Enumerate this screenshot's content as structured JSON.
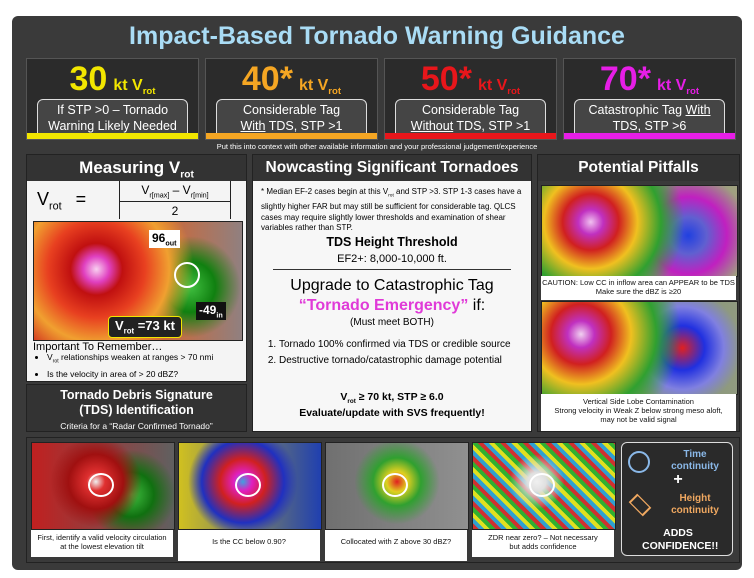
{
  "title": "Impact-Based Tornado Warning Guidance",
  "thresholds": [
    {
      "value": "30",
      "unit": "kt V",
      "sub": "rot",
      "color": "#f2e600",
      "lines": [
        [
          {
            "text": "If STP >0 – Tornado",
            "underline": false
          }
        ],
        [
          {
            "text": "Warning Likely Needed",
            "underline": false
          }
        ]
      ]
    },
    {
      "value": "40*",
      "unit": "kt V",
      "sub": "rot",
      "color": "#f5a623",
      "lines": [
        [
          {
            "text": "Considerable Tag",
            "underline": false
          }
        ],
        [
          {
            "text": "With",
            "underline": true
          },
          {
            "text": " TDS, STP >1",
            "underline": false
          }
        ]
      ]
    },
    {
      "value": "50*",
      "unit": "kt V",
      "sub": "rot",
      "color": "#e8161b",
      "lines": [
        [
          {
            "text": "Considerable Tag",
            "underline": false
          }
        ],
        [
          {
            "text": "Without",
            "underline": true
          },
          {
            "text": " TDS, STP >1",
            "underline": false
          }
        ]
      ]
    },
    {
      "value": "70*",
      "unit": "kt V",
      "sub": "rot",
      "color": "#e61ee6",
      "lines": [
        [
          {
            "text": "Catastrophic Tag ",
            "underline": false
          },
          {
            "text": "With",
            "underline": true
          }
        ],
        [
          {
            "text": "TDS, STP >6",
            "underline": false
          }
        ]
      ]
    }
  ],
  "context_note": "Put this into context with other available information and your professional judgement/experience",
  "measuring": {
    "heading": "Measuring V",
    "heading_sub": "rot",
    "formula": {
      "v": "V",
      "v_sub": "rot",
      "eq": "=",
      "num_a": "V",
      "num_a_sub": "r[max]",
      "minus": " – ",
      "num_b": "V",
      "num_b_sub": "r[min]",
      "den": "2"
    },
    "image_labels": {
      "out": "96",
      "out_sub": "out",
      "in": "-49",
      "in_sub": "in",
      "vrot": "V",
      "vrot_sub": "rot",
      "vrot_val": " =73 kt"
    },
    "remember": "Important To Remember…",
    "bullets": [
      {
        "pre": "V",
        "sub": "rot",
        "post": " relationships weaken at ranges > 70 nmi"
      },
      {
        "pre": "Is the velocity in area of > 20 dBZ?",
        "sub": "",
        "post": ""
      }
    ]
  },
  "tds": {
    "heading": "Tornado Debris Signature (TDS) Identification",
    "criteria": "Criteria for a “Radar Confirmed Tornado”"
  },
  "nowcasting": {
    "heading": "Nowcasting Significant Tornadoes",
    "note_pre": "* Median EF-2 cases begin at this V",
    "note_sub": "rot",
    "note_post": " and STP >3. STP 1-3 cases have a slightly higher FAR but may still be sufficient for considerable tag. QLCS cases may require slightly lower thresholds and examination of shear variables rather than STP.",
    "tds_height_heading": "TDS Height Threshold",
    "tds_height": "EF2+: 8,000-10,000 ft.",
    "upgrade": "Upgrade to Catastrophic Tag",
    "emergency": "“Tornado Emergency”",
    "if": " if:",
    "must": "(Must meet BOTH)",
    "items": [
      "Tornado 100% confirmed via TDS or credible source",
      "Destructive tornado/catastrophic damage potential"
    ],
    "criteria_pre": "V",
    "criteria_sub": "rot",
    "criteria_post": " ≥ 70 kt, STP ≥ 6.0",
    "evaluate": "Evaluate/update with SVS frequently!"
  },
  "pitfalls": {
    "heading": "Potential Pitfalls",
    "captions": [
      [
        "CAUTION: Low CC in inflow area can APPEAR to be TDS",
        "Make sure the dBZ is ≥20"
      ],
      [
        "Vertical Side Lobe Contamination",
        "Strong velocity in Weak Z below strong meso aloft,",
        "may not be valid signal"
      ]
    ]
  },
  "steps": [
    [
      "First, identify a valid velocity circulation",
      "at the lowest elevation tilt"
    ],
    [
      "Is the CC below 0.90?"
    ],
    [
      "Collocated with Z above 30 dBZ?"
    ],
    [
      "ZDR near zero? – Not necessary",
      "but adds confidence"
    ]
  ],
  "confidence": {
    "time": "Time continuity",
    "plus": "+",
    "height": "Height continuity",
    "adds": "ADDS CONFIDENCE!!"
  }
}
